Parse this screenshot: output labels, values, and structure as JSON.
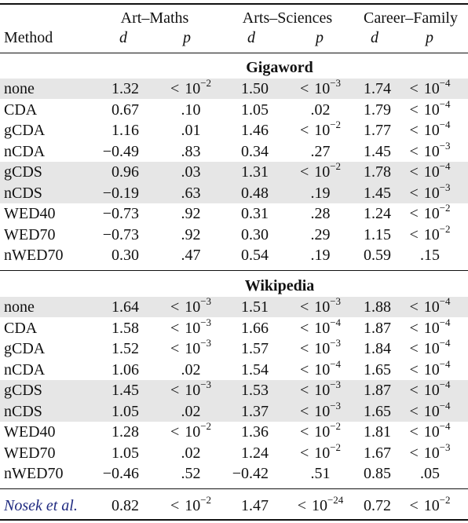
{
  "header": {
    "groups": [
      "Art–Maths",
      "Arts–Sciences",
      "Career–Family"
    ],
    "method_label": "Method",
    "stat_labels": [
      "d",
      "p"
    ]
  },
  "sections": [
    {
      "title": "Gigaword",
      "rows": [
        {
          "method": "none",
          "shaded": true,
          "cells": [
            {
              "d": "1.32",
              "p": {
                "lt": true,
                "exp": "−2"
              }
            },
            {
              "d": "1.50",
              "p": {
                "lt": true,
                "exp": "−3"
              }
            },
            {
              "d": "1.74",
              "p": {
                "lt": true,
                "exp": "−4"
              }
            }
          ]
        },
        {
          "method": "CDA",
          "shaded": false,
          "cells": [
            {
              "d": "0.67",
              "p": {
                "val": ".10"
              }
            },
            {
              "d": "1.05",
              "p": {
                "val": ".02"
              }
            },
            {
              "d": "1.79",
              "p": {
                "lt": true,
                "exp": "−4"
              }
            }
          ]
        },
        {
          "method": "gCDA",
          "shaded": false,
          "cells": [
            {
              "d": "1.16",
              "p": {
                "val": ".01"
              }
            },
            {
              "d": "1.46",
              "p": {
                "lt": true,
                "exp": "−2"
              }
            },
            {
              "d": "1.77",
              "p": {
                "lt": true,
                "exp": "−4"
              }
            }
          ]
        },
        {
          "method": "nCDA",
          "shaded": false,
          "cells": [
            {
              "d": "−0.49",
              "p": {
                "val": ".83"
              }
            },
            {
              "d": "0.34",
              "p": {
                "val": ".27"
              }
            },
            {
              "d": "1.45",
              "p": {
                "lt": true,
                "exp": "−3"
              }
            }
          ]
        },
        {
          "method": "gCDS",
          "shaded": true,
          "cells": [
            {
              "d": "0.96",
              "p": {
                "val": ".03"
              }
            },
            {
              "d": "1.31",
              "p": {
                "lt": true,
                "exp": "−2"
              }
            },
            {
              "d": "1.78",
              "p": {
                "lt": true,
                "exp": "−4"
              }
            }
          ]
        },
        {
          "method": "nCDS",
          "shaded": true,
          "cells": [
            {
              "d": "−0.19",
              "p": {
                "val": ".63"
              }
            },
            {
              "d": "0.48",
              "p": {
                "val": ".19"
              }
            },
            {
              "d": "1.45",
              "p": {
                "lt": true,
                "exp": "−3"
              }
            }
          ]
        },
        {
          "method": "WED40",
          "shaded": false,
          "cells": [
            {
              "d": "−0.73",
              "p": {
                "val": ".92"
              }
            },
            {
              "d": "0.31",
              "p": {
                "val": ".28"
              }
            },
            {
              "d": "1.24",
              "p": {
                "lt": true,
                "exp": "−2"
              }
            }
          ]
        },
        {
          "method": "WED70",
          "shaded": false,
          "cells": [
            {
              "d": "−0.73",
              "p": {
                "val": ".92"
              }
            },
            {
              "d": "0.30",
              "p": {
                "val": ".29"
              }
            },
            {
              "d": "1.15",
              "p": {
                "lt": true,
                "exp": "−2"
              }
            }
          ]
        },
        {
          "method": "nWED70",
          "shaded": false,
          "cells": [
            {
              "d": "0.30",
              "p": {
                "val": ".47"
              }
            },
            {
              "d": "0.54",
              "p": {
                "val": ".19"
              }
            },
            {
              "d": "0.59",
              "p": {
                "val": ".15"
              }
            }
          ]
        }
      ]
    },
    {
      "title": "Wikipedia",
      "rows": [
        {
          "method": "none",
          "shaded": true,
          "cells": [
            {
              "d": "1.64",
              "p": {
                "lt": true,
                "exp": "−3"
              }
            },
            {
              "d": "1.51",
              "p": {
                "lt": true,
                "exp": "−3"
              }
            },
            {
              "d": "1.88",
              "p": {
                "lt": true,
                "exp": "−4"
              }
            }
          ]
        },
        {
          "method": "CDA",
          "shaded": false,
          "cells": [
            {
              "d": "1.58",
              "p": {
                "lt": true,
                "exp": "−3"
              }
            },
            {
              "d": "1.66",
              "p": {
                "lt": true,
                "exp": "−4"
              }
            },
            {
              "d": "1.87",
              "p": {
                "lt": true,
                "exp": "−4"
              }
            }
          ]
        },
        {
          "method": "gCDA",
          "shaded": false,
          "cells": [
            {
              "d": "1.52",
              "p": {
                "lt": true,
                "exp": "−3"
              }
            },
            {
              "d": "1.57",
              "p": {
                "lt": true,
                "exp": "−3"
              }
            },
            {
              "d": "1.84",
              "p": {
                "lt": true,
                "exp": "−4"
              }
            }
          ]
        },
        {
          "method": "nCDA",
          "shaded": false,
          "cells": [
            {
              "d": "1.06",
              "p": {
                "val": ".02"
              }
            },
            {
              "d": "1.54",
              "p": {
                "lt": true,
                "exp": "−4"
              }
            },
            {
              "d": "1.65",
              "p": {
                "lt": true,
                "exp": "−4"
              }
            }
          ]
        },
        {
          "method": "gCDS",
          "shaded": true,
          "cells": [
            {
              "d": "1.45",
              "p": {
                "lt": true,
                "exp": "−3"
              }
            },
            {
              "d": "1.53",
              "p": {
                "lt": true,
                "exp": "−3"
              }
            },
            {
              "d": "1.87",
              "p": {
                "lt": true,
                "exp": "−4"
              }
            }
          ]
        },
        {
          "method": "nCDS",
          "shaded": true,
          "cells": [
            {
              "d": "1.05",
              "p": {
                "val": ".02"
              }
            },
            {
              "d": "1.37",
              "p": {
                "lt": true,
                "exp": "−3"
              }
            },
            {
              "d": "1.65",
              "p": {
                "lt": true,
                "exp": "−4"
              }
            }
          ]
        },
        {
          "method": "WED40",
          "shaded": false,
          "cells": [
            {
              "d": "1.28",
              "p": {
                "lt": true,
                "exp": "−2"
              }
            },
            {
              "d": "1.36",
              "p": {
                "lt": true,
                "exp": "−2"
              }
            },
            {
              "d": "1.81",
              "p": {
                "lt": true,
                "exp": "−4"
              }
            }
          ]
        },
        {
          "method": "WED70",
          "shaded": false,
          "cells": [
            {
              "d": "1.05",
              "p": {
                "val": ".02"
              }
            },
            {
              "d": "1.24",
              "p": {
                "lt": true,
                "exp": "−2"
              }
            },
            {
              "d": "1.67",
              "p": {
                "lt": true,
                "exp": "−3"
              }
            }
          ]
        },
        {
          "method": "nWED70",
          "shaded": false,
          "cells": [
            {
              "d": "−0.46",
              "p": {
                "val": ".52"
              }
            },
            {
              "d": "−0.42",
              "p": {
                "val": ".51"
              }
            },
            {
              "d": "0.85",
              "p": {
                "val": ".05"
              }
            }
          ]
        }
      ]
    }
  ],
  "footer_row": {
    "method": "Nosek et al.",
    "method_color": "#1f2a80",
    "cells": [
      {
        "d": "0.82",
        "p": {
          "lt": true,
          "exp": "−2"
        }
      },
      {
        "d": "1.47",
        "p": {
          "lt": true,
          "exp": "−24"
        }
      },
      {
        "d": "0.72",
        "p": {
          "lt": true,
          "exp": "−2"
        }
      }
    ]
  },
  "colors": {
    "shade": "#e6e6e6",
    "text": "#111111"
  }
}
